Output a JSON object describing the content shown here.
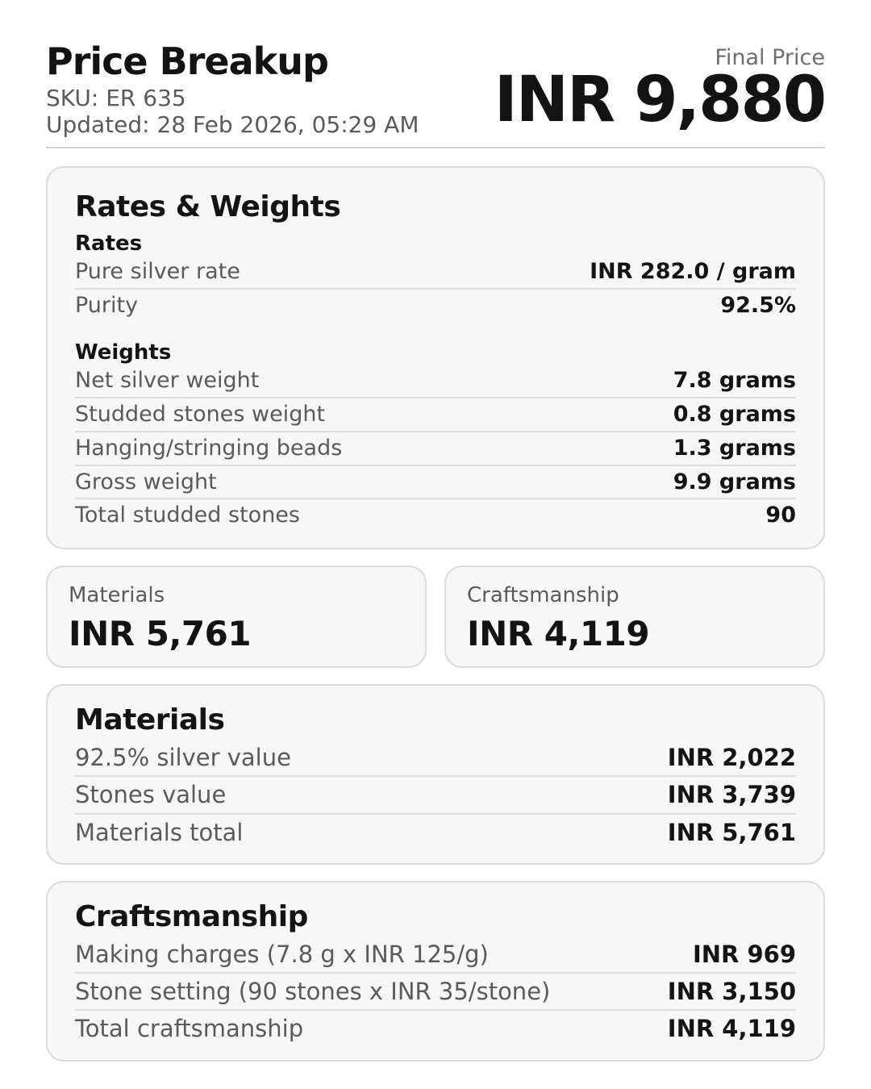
{
  "header": {
    "title": "Price Breakup",
    "sku": "SKU: ER 635",
    "updated": "Updated: 28 Feb 2026, 05:29 AM",
    "final_price_label": "Final Price",
    "final_price_value": "INR 9,880"
  },
  "rates_weights": {
    "title": "Rates & Weights",
    "rates": {
      "title": "Rates",
      "rows": [
        {
          "label": "Pure silver rate",
          "value": "INR 282.0 / gram"
        },
        {
          "label": "Purity",
          "value": "92.5%"
        }
      ]
    },
    "weights": {
      "title": "Weights",
      "rows": [
        {
          "label": "Net silver weight",
          "value": "7.8 grams"
        },
        {
          "label": "Studded stones weight",
          "value": "0.8 grams"
        },
        {
          "label": "Hanging/stringing beads",
          "value": "1.3 grams"
        },
        {
          "label": "Gross weight",
          "value": "9.9 grams"
        },
        {
          "label": "Total studded stones",
          "value": "90"
        }
      ]
    }
  },
  "summary_tiles": [
    {
      "label": "Materials",
      "value": "INR 5,761"
    },
    {
      "label": "Craftsmanship",
      "value": "INR 4,119"
    }
  ],
  "materials": {
    "title": "Materials",
    "rows": [
      {
        "label": "92.5% silver value",
        "value": "INR 2,022"
      },
      {
        "label": "Stones value",
        "value": "INR 3,739"
      },
      {
        "label": "Materials total",
        "value": "INR 5,761"
      }
    ]
  },
  "craftsmanship": {
    "title": "Craftsmanship",
    "rows": [
      {
        "label": "Making charges (7.8 g x INR 125/g)",
        "value": "INR 969"
      },
      {
        "label": "Stone setting (90 stones x INR 35/stone)",
        "value": "INR 3,150"
      },
      {
        "label": "Total craftsmanship",
        "value": "INR 4,119"
      }
    ]
  }
}
